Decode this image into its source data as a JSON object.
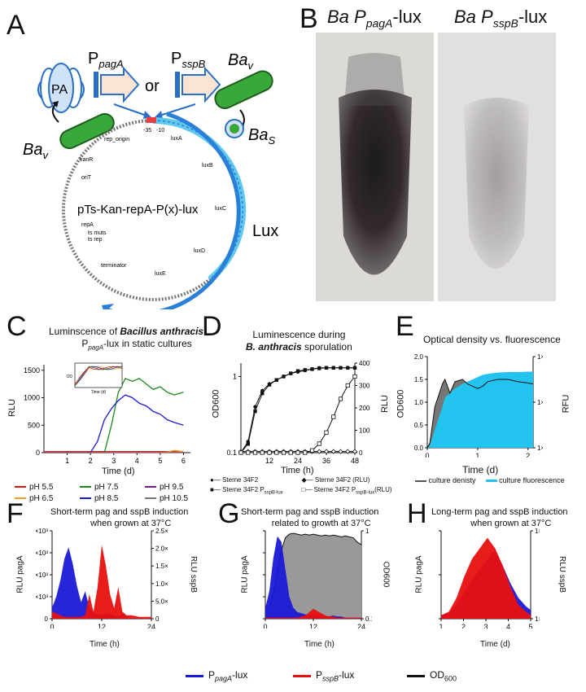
{
  "panels": {
    "A": {
      "letter": "A",
      "pa_label": "PA",
      "p_pagA": "P",
      "p_pagA_sub": "pagA",
      "or": "or",
      "p_sspB": "P",
      "p_sspB_sub": "sspB",
      "ba_v_right": "Ba",
      "ba_v_right_sub": "v",
      "ba_v_left": "Ba",
      "ba_v_left_sub": "v",
      "ba_s": "Ba",
      "ba_s_sub": "S",
      "lux": "Lux",
      "plasmid_name": "pTs-Kan-repA-P(x)-lux",
      "features": [
        "rep_origin",
        "kanR",
        "oriT",
        "repA",
        "ts muts",
        "ts rep",
        "terminator",
        "luxA",
        "luxB",
        "luxC",
        "luxD",
        "luxE",
        "-35",
        "-10"
      ]
    },
    "B": {
      "letter": "B",
      "left_title": "Ba P",
      "left_sub": "pagA",
      "left_suffix": "-lux",
      "right_title": "Ba P",
      "right_sub": "sspB",
      "right_suffix": "-lux"
    },
    "C": {
      "letter": "C",
      "title1": "Luminscence of",
      "title_species": "Bacillus anthracis",
      "title2_pre": "P",
      "title2_sub": "pagA",
      "title2_suffix": "-lux in static cultures",
      "inset_ylabel": "OD",
      "inset_xlabel": "Time (d)"
    },
    "D": {
      "letter": "D",
      "title1": "Luminescence during",
      "title_species": "B. anthracis",
      "title2": "sporulation"
    },
    "E": {
      "letter": "E",
      "title": "Optical density vs. fluorescence"
    },
    "F": {
      "letter": "F",
      "title1": "Short-term pag and sspB induction",
      "title2": "when grown at 37°C"
    },
    "G": {
      "letter": "G",
      "title1": "Short-term pag and sspB induction",
      "title2": "related to growth at 37°C"
    },
    "H": {
      "letter": "H",
      "title1": "Long-term pag and sspB induction",
      "title2": "when grown at 37°C"
    }
  },
  "colors": {
    "blue": "#1a1ad6",
    "red": "#e81010",
    "green": "#1a8a1a",
    "orange": "#f0a020",
    "purple": "#7a1a9a",
    "gray": "#999999",
    "cyan": "#22c3ee",
    "plasmid_blue": "#2a7fd6",
    "bacterium_green": "#39a83a"
  },
  "bottom_legend": {
    "blue": "P",
    "blue_sub": "pagA",
    "blue_suffix": "-lux",
    "red": "P",
    "red_sub": "sspB",
    "red_suffix": "-lux",
    "black": "OD",
    "black_sub": "600"
  },
  "chart_data": [
    {
      "panel": "C",
      "type": "line",
      "title": "Luminscence of Bacillus anthracis PpagA-lux in static cultures",
      "xlabel": "Time (d)",
      "ylabel": "RLU",
      "xlim": [
        0,
        6.3
      ],
      "ylim": [
        0,
        1600
      ],
      "xticks": [
        "1",
        "2",
        "3",
        "4",
        "5",
        "6"
      ],
      "yticks": [
        "0",
        "500",
        "1000",
        "1500"
      ],
      "x": [
        0,
        0.5,
        1,
        1.5,
        2,
        2.3,
        2.6,
        2.9,
        3.2,
        3.5,
        3.8,
        4.1,
        4.4,
        4.7,
        5.0,
        5.3,
        5.6,
        6.0
      ],
      "series": [
        {
          "name": "pH 5.5",
          "color": "#e81010",
          "values": [
            20,
            20,
            20,
            20,
            20,
            20,
            20,
            20,
            20,
            20,
            20,
            20,
            20,
            20,
            20,
            20,
            20,
            20
          ]
        },
        {
          "name": "pH 6.5",
          "color": "#f0a020",
          "values": [
            0,
            0,
            0,
            0,
            0,
            0,
            0,
            0,
            0,
            0,
            0,
            0,
            0,
            0,
            0,
            10,
            40,
            20
          ]
        },
        {
          "name": "pH 7.5",
          "color": "#1a8a1a",
          "values": [
            0,
            0,
            0,
            0,
            0,
            0,
            0,
            500,
            1100,
            1350,
            1300,
            1350,
            1250,
            1150,
            1200,
            1100,
            1050,
            1100
          ]
        },
        {
          "name": "pH 8.5",
          "color": "#1a1ad6",
          "values": [
            0,
            0,
            0,
            0,
            0,
            200,
            600,
            800,
            950,
            1050,
            1000,
            900,
            850,
            750,
            700,
            600,
            550,
            500
          ]
        },
        {
          "name": "pH 9.5",
          "color": "#7a1a9a",
          "values": [
            0,
            0,
            0,
            0,
            0,
            0,
            0,
            0,
            0,
            0,
            0,
            0,
            0,
            0,
            0,
            0,
            0,
            0
          ]
        },
        {
          "name": "pH 10.5",
          "color": "#777777",
          "values": [
            0,
            0,
            0,
            0,
            0,
            0,
            0,
            0,
            0,
            0,
            0,
            0,
            0,
            0,
            0,
            0,
            0,
            0
          ]
        }
      ],
      "legend": [
        "pH 5.5",
        "pH 6.5",
        "pH 7.5",
        "pH 8.5",
        "pH 9.5",
        "pH 10.5"
      ]
    },
    {
      "panel": "D",
      "type": "line",
      "title": "Luminescence during B. anthracis sporulation",
      "xlabel": "Time (h)",
      "ylabel": "OD600",
      "ylabel_right": "RLU",
      "xlim": [
        0,
        48
      ],
      "xticks": [
        "12",
        "24",
        "36",
        "48"
      ],
      "yticks_left": [
        "0.1",
        "1"
      ],
      "yticks_right": [
        "0",
        "100",
        "200",
        "300",
        "400"
      ],
      "x": [
        0,
        3,
        6,
        9,
        12,
        15,
        18,
        21,
        24,
        27,
        30,
        33,
        36,
        39,
        42,
        45,
        48
      ],
      "series": [
        {
          "name": "Sterne 34F2",
          "axis": "left",
          "values": [
            0.1,
            0.14,
            0.4,
            0.65,
            0.8,
            0.9,
            1.0,
            1.1,
            1.15,
            1.2,
            1.25,
            1.3,
            1.3,
            1.3,
            1.3,
            1.3,
            1.3
          ]
        },
        {
          "name": "Sterne 34F2 PsspB-lux",
          "axis": "left",
          "values": [
            0.1,
            0.13,
            0.35,
            0.6,
            0.78,
            0.9,
            1.0,
            1.1,
            1.18,
            1.22,
            1.25,
            1.28,
            1.3,
            1.3,
            1.3,
            1.3,
            1.3
          ]
        },
        {
          "name": "Sterne 34F2 (RLU)",
          "axis": "right",
          "values": [
            5,
            5,
            5,
            5,
            5,
            5,
            5,
            5,
            5,
            5,
            5,
            5,
            5,
            5,
            5,
            5,
            5
          ]
        },
        {
          "name": "Sterne 34F2 PsspB-lux (RLU)",
          "axis": "right",
          "values": [
            0,
            0,
            0,
            0,
            0,
            0,
            0,
            0,
            0,
            0,
            10,
            40,
            90,
            160,
            240,
            300,
            340
          ]
        }
      ],
      "legend": [
        "Sterne 34F2",
        "Sterne 34F2 P",
        "Sterne 34F2 (RLU)",
        "Sterne 34F2 P"
      ],
      "legend_sub": "sspB-lux",
      "legend_suffix": "(RLU)"
    },
    {
      "panel": "E",
      "type": "area",
      "title": "Optical density vs. fluorescence",
      "xlabel": "Time (d)",
      "ylabel": "OD600",
      "ylabel_right": "RFU",
      "xlim": [
        0,
        2.1
      ],
      "ylim": [
        0,
        2.0
      ],
      "xticks": [
        "0",
        "1",
        "2"
      ],
      "yticks": [
        "0.0",
        "0.5",
        "1.0",
        "1.5",
        "2.0"
      ],
      "yticks_right": [
        "1×10³",
        "1×10⁴",
        "1×10⁵"
      ],
      "x": [
        0,
        0.05,
        0.15,
        0.3,
        0.35,
        0.45,
        0.55,
        0.7,
        0.8,
        0.9,
        1.0,
        1.1,
        1.2,
        1.4,
        1.6,
        1.8,
        2.0,
        2.1
      ],
      "series": [
        {
          "name": "culture denisty",
          "color": "#555555",
          "values": [
            0,
            0.1,
            0.9,
            1.4,
            1.5,
            1.2,
            1.45,
            1.5,
            1.4,
            1.35,
            1.3,
            1.35,
            1.45,
            1.5,
            1.5,
            1.45,
            1.42,
            1.4
          ]
        },
        {
          "name": "culture fluorescence",
          "color": "#22c3ee",
          "values": [
            0,
            0.05,
            0.4,
            0.9,
            1.1,
            1.2,
            1.3,
            1.4,
            1.45,
            1.5,
            1.55,
            1.6,
            1.62,
            1.65,
            1.66,
            1.66,
            1.67,
            1.67
          ]
        }
      ],
      "legend": [
        "culture denisty",
        "culture fluorescence"
      ]
    },
    {
      "panel": "F",
      "type": "area",
      "title": "Short-term pag and sspB induction when grown at 37°C",
      "xlabel": "Time (h)",
      "ylabel": "RLU pagA",
      "ylabel_right": "RLU sspB",
      "xlim": [
        0,
        24
      ],
      "xticks": [
        "0",
        "12",
        "24"
      ],
      "yticks": [
        "0",
        "2×10³",
        "4×10³",
        "6×10³",
        "8×10³"
      ],
      "yticks_right": [
        "0",
        "5.0×10²",
        "1.0×10³",
        "1.5×10³",
        "2.0×10³",
        "2.5×10³"
      ],
      "x": [
        0,
        1,
        2,
        3,
        4,
        5,
        6,
        7,
        8,
        9,
        10,
        11,
        12,
        13,
        14,
        15,
        16,
        17,
        18,
        19,
        20,
        21,
        22,
        23,
        24
      ],
      "series": [
        {
          "name": "PpagA-lux",
          "axis": "left",
          "color": "#1a1ad6",
          "values": [
            1000,
            2000,
            3500,
            5500,
            6500,
            5000,
            3000,
            1500,
            2500,
            1000,
            600,
            400,
            300,
            500,
            400,
            300,
            200,
            400,
            200,
            100,
            100,
            100,
            50,
            50,
            50
          ]
        },
        {
          "name": "PsspB-lux",
          "axis": "right",
          "color": "#e81010",
          "values": [
            200,
            150,
            100,
            50,
            50,
            50,
            50,
            50,
            100,
            700,
            200,
            900,
            2100,
            1500,
            700,
            300,
            900,
            200,
            100,
            100,
            80,
            50,
            50,
            50,
            50
          ]
        }
      ]
    },
    {
      "panel": "G",
      "type": "area",
      "title": "Short-term pag and sspB induction related to growth at 37°C",
      "xlabel": "Time (h)",
      "ylabel": "RLU pagA",
      "ylabel_right": "OD600",
      "xlim": [
        0,
        24
      ],
      "xticks": [
        "0",
        "12",
        "24"
      ],
      "yticks": [
        "0",
        "2×10³",
        "4×10³",
        "6×10³",
        "8×10³"
      ],
      "yticks_right": [
        "0.1",
        "1"
      ],
      "x": [
        0,
        1,
        2,
        3,
        4,
        5,
        6,
        7,
        8,
        9,
        10,
        11,
        12,
        13,
        14,
        15,
        16,
        17,
        18,
        19,
        20,
        21,
        22,
        23,
        24
      ],
      "series": [
        {
          "name": "OD600",
          "axis": "right",
          "color": "#999999",
          "values": [
            0.1,
            0.12,
            0.2,
            0.45,
            0.9,
            1.4,
            1.6,
            1.65,
            1.6,
            1.55,
            1.6,
            1.55,
            1.6,
            1.55,
            1.5,
            1.55,
            1.5,
            1.55,
            1.5,
            1.45,
            1.5,
            1.45,
            1.4,
            1.2,
            1.1
          ]
        },
        {
          "name": "PpagA-lux",
          "axis": "left",
          "color": "#1a1ad6",
          "values": [
            1000,
            2500,
            5500,
            7500,
            7000,
            4500,
            2000,
            1000,
            600,
            500,
            400,
            300,
            300,
            300,
            200,
            200,
            200,
            300,
            200,
            200,
            100,
            100,
            100,
            100,
            100
          ]
        },
        {
          "name": "PsspB-lux",
          "axis": "left",
          "color": "#e81010",
          "values": [
            100,
            100,
            100,
            100,
            100,
            100,
            100,
            100,
            100,
            200,
            300,
            600,
            900,
            700,
            500,
            300,
            200,
            200,
            100,
            100,
            100,
            100,
            100,
            100,
            100
          ]
        }
      ]
    },
    {
      "panel": "H",
      "type": "area",
      "title": "Long-term pag and sspB induction when grown at 37°C",
      "xlabel": "Time (d)",
      "ylabel": "RLU pagA",
      "ylabel_right": "RLU sspB",
      "xlim": [
        0,
        5.8
      ],
      "xticks": [
        "1",
        "2",
        "3",
        "4",
        "5"
      ],
      "yticks": [
        "0",
        "5×10³",
        "5×10⁴"
      ],
      "yticks_right": [
        "1×10³",
        "1×10⁴"
      ],
      "x": [
        0,
        0.5,
        1,
        1.5,
        2,
        2.5,
        3,
        3.5,
        4,
        4.5,
        5,
        5.5,
        5.8
      ],
      "series": [
        {
          "name": "PpagA-lux",
          "axis": "left",
          "color": "#1a1ad6",
          "values": [
            200,
            300,
            800,
            1500,
            2200,
            2800,
            3400,
            3900,
            3000,
            2000,
            1200,
            700,
            500
          ]
        },
        {
          "name": "PsspB-lux",
          "axis": "right",
          "color": "#e81010",
          "values": [
            100,
            200,
            600,
            1200,
            1700,
            2000,
            2300,
            2000,
            1500,
            900,
            400,
            200,
            100
          ]
        }
      ]
    }
  ]
}
